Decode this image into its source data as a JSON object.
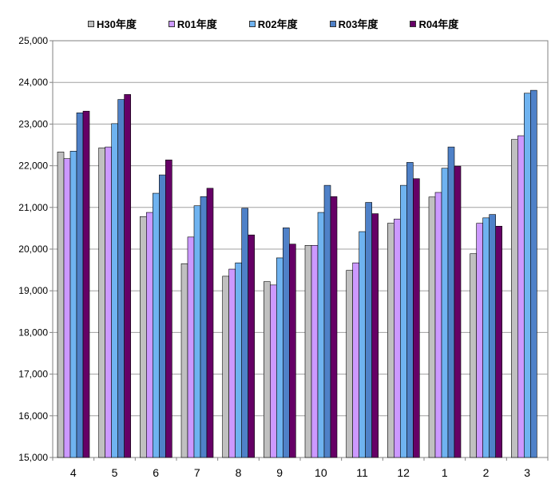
{
  "chart_data": {
    "type": "bar",
    "categories": [
      "4",
      "5",
      "6",
      "7",
      "8",
      "9",
      "10",
      "11",
      "12",
      "1",
      "2",
      "3"
    ],
    "ylim": [
      15000,
      25000
    ],
    "yticks": [
      "15,000",
      "16,000",
      "17,000",
      "18,000",
      "19,000",
      "20,000",
      "21,000",
      "22,000",
      "23,000",
      "24,000",
      "25,000"
    ],
    "grid": true,
    "legend_position": "top",
    "series": [
      {
        "name": "H30年度",
        "color": "#c0c0c0",
        "values": [
          22330,
          22430,
          20780,
          19650,
          19350,
          19220,
          20090,
          19490,
          20620,
          21250,
          19890,
          22630
        ]
      },
      {
        "name": "R01年度",
        "color": "#cc99ff",
        "values": [
          22170,
          22450,
          20880,
          20290,
          19520,
          19140,
          20090,
          19670,
          20720,
          21360,
          20620,
          22720
        ]
      },
      {
        "name": "R02年度",
        "color": "#6fb3f0",
        "values": [
          22350,
          23010,
          21340,
          21040,
          19670,
          19790,
          20880,
          20420,
          21530,
          21940,
          20750,
          23740
        ]
      },
      {
        "name": "R03年度",
        "color": "#4f81c8",
        "values": [
          23270,
          23590,
          21780,
          21260,
          20980,
          20510,
          21530,
          21120,
          22080,
          22450,
          20830,
          23810
        ]
      },
      {
        "name": "R04年度",
        "color": "#660066",
        "values": [
          23310,
          23710,
          22140,
          21460,
          20340,
          20120,
          21260,
          20850,
          21690,
          21990,
          20550,
          null
        ]
      }
    ]
  }
}
